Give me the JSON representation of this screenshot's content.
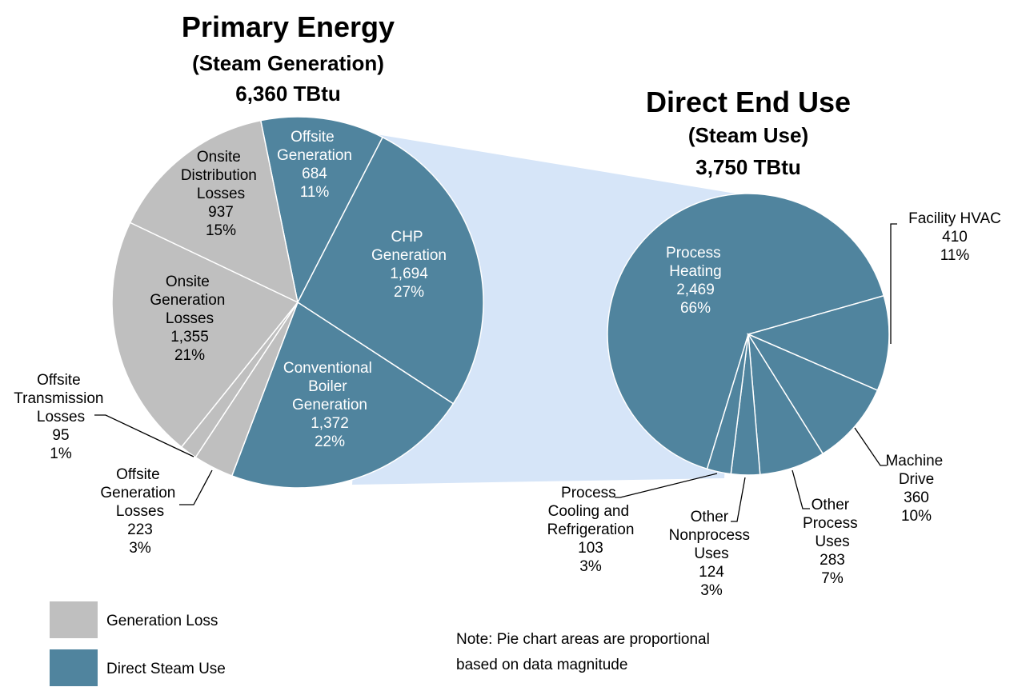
{
  "chart_data": [
    {
      "type": "pie",
      "title": "Primary Energy",
      "subtitle": "(Steam Generation)",
      "total": "6,360 TBtu",
      "categories": [
        "Offsite Generation",
        "CHP Generation",
        "Conventional Boiler Generation",
        "Offsite Generation Losses",
        "Offsite Transmission Losses",
        "Onsite Generation Losses",
        "Onsite Distribution Losses"
      ],
      "values": [
        684,
        1694,
        1372,
        223,
        95,
        1355,
        937
      ],
      "value_labels": [
        "684",
        "1,694",
        "1,372",
        "223",
        "95",
        "1,355",
        "937"
      ],
      "percents": [
        11,
        27,
        22,
        3,
        1,
        21,
        15
      ],
      "percent_labels": [
        "11%",
        "27%",
        "22%",
        "3%",
        "1%",
        "21%",
        "15%"
      ],
      "colors": [
        "#50849e",
        "#50849e",
        "#50849e",
        "#bfbfbf",
        "#bfbfbf",
        "#bfbfbf",
        "#bfbfbf"
      ]
    },
    {
      "type": "pie",
      "title": "Direct End Use",
      "subtitle": "(Steam Use)",
      "total": "3,750 TBtu",
      "categories": [
        "Process Heating",
        "Facility HVAC",
        "Machine Drive",
        "Other Process Uses",
        "Other Nonprocess Uses",
        "Process Cooling and Refrigeration"
      ],
      "values": [
        2469,
        410,
        360,
        283,
        124,
        103
      ],
      "value_labels": [
        "2,469",
        "410",
        "360",
        "283",
        "124",
        "103"
      ],
      "percents": [
        66,
        11,
        10,
        7,
        3,
        3
      ],
      "percent_labels": [
        "66%",
        "11%",
        "10%",
        "7%",
        "3%",
        "3%"
      ],
      "colors": [
        "#50849e",
        "#50849e",
        "#50849e",
        "#50849e",
        "#50849e",
        "#50849e"
      ]
    }
  ],
  "legend": [
    {
      "name": "Generation Loss",
      "color": "#bfbfbf"
    },
    {
      "name": "Direct Steam Use",
      "color": "#50849e"
    }
  ],
  "note": "Note: Pie chart areas are proportional based on data magnitude"
}
